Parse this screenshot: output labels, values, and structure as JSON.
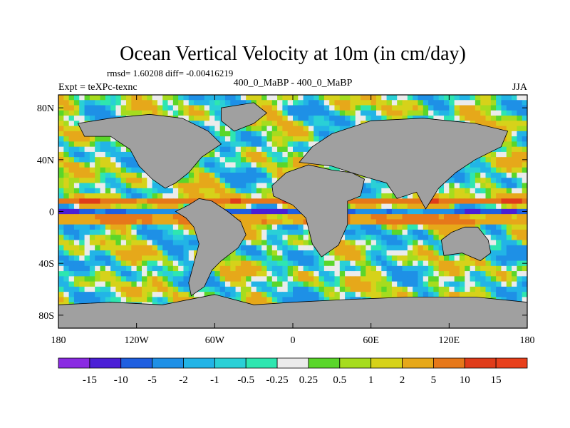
{
  "chart_data": {
    "type": "heatmap",
    "title": "Ocean Vertical Velocity at 10m (in cm/day)",
    "stats_text": "rmsd= 1.60208 diff= -0.00416219",
    "left_label": "Expt = teXPc-texnc",
    "center_label": "400_0_MaBP - 400_0_MaBP",
    "right_label": "JJA",
    "x_range": [
      -180,
      180
    ],
    "y_range": [
      -90,
      90
    ],
    "x_ticks": [
      {
        "value": -180,
        "label": "180"
      },
      {
        "value": -120,
        "label": "120W"
      },
      {
        "value": -60,
        "label": "60W"
      },
      {
        "value": 0,
        "label": "0"
      },
      {
        "value": 60,
        "label": "60E"
      },
      {
        "value": 120,
        "label": "120E"
      },
      {
        "value": 180,
        "label": "180"
      }
    ],
    "y_ticks": [
      {
        "value": 80,
        "label": "80N"
      },
      {
        "value": 40,
        "label": "40N"
      },
      {
        "value": 0,
        "label": "0"
      },
      {
        "value": -40,
        "label": "40S"
      },
      {
        "value": -80,
        "label": "80S"
      }
    ],
    "colorbar": {
      "levels": [
        "-15",
        "-10",
        "-5",
        "-2",
        "-1",
        "-0.5",
        "-0.25",
        "0.25",
        "0.5",
        "1",
        "2",
        "5",
        "10",
        "15"
      ],
      "colors": [
        "#8a2be2",
        "#4b1fd6",
        "#1f5fe0",
        "#1e90e6",
        "#22b4e6",
        "#2ad0d6",
        "#2ee6b0",
        "#ebebeb",
        "#5ad62a",
        "#a6dc1e",
        "#d6d21a",
        "#e6a81a",
        "#e6781a",
        "#e03c1a",
        "#e8401c"
      ]
    },
    "land_color": "#a0a0a0",
    "land_regions": [
      {
        "name": "South America",
        "outline": [
          [
            -90,
            0
          ],
          [
            -80,
            5
          ],
          [
            -72,
            10
          ],
          [
            -62,
            8
          ],
          [
            -50,
            0
          ],
          [
            -40,
            -8
          ],
          [
            -36,
            -18
          ],
          [
            -42,
            -28
          ],
          [
            -55,
            -38
          ],
          [
            -62,
            -45
          ],
          [
            -68,
            -58
          ],
          [
            -78,
            -65
          ],
          [
            -80,
            -55
          ],
          [
            -76,
            -40
          ],
          [
            -72,
            -25
          ],
          [
            -76,
            -12
          ],
          [
            -82,
            -5
          ]
        ]
      },
      {
        "name": "Africa-Arabia",
        "outline": [
          [
            -16,
            20
          ],
          [
            -5,
            30
          ],
          [
            12,
            36
          ],
          [
            30,
            32
          ],
          [
            45,
            30
          ],
          [
            55,
            25
          ],
          [
            52,
            12
          ],
          [
            42,
            8
          ],
          [
            42,
            -10
          ],
          [
            35,
            -26
          ],
          [
            22,
            -35
          ],
          [
            15,
            -25
          ],
          [
            10,
            -5
          ],
          [
            0,
            5
          ],
          [
            -15,
            12
          ]
        ]
      },
      {
        "name": "Asia",
        "outline": [
          [
            5,
            38
          ],
          [
            15,
            50
          ],
          [
            30,
            60
          ],
          [
            60,
            70
          ],
          [
            100,
            72
          ],
          [
            140,
            68
          ],
          [
            165,
            62
          ],
          [
            160,
            50
          ],
          [
            140,
            40
          ],
          [
            125,
            30
          ],
          [
            112,
            18
          ],
          [
            102,
            2
          ],
          [
            95,
            15
          ],
          [
            80,
            10
          ],
          [
            72,
            22
          ],
          [
            58,
            26
          ],
          [
            45,
            30
          ],
          [
            30,
            35
          ]
        ]
      },
      {
        "name": "North America",
        "outline": [
          [
            -165,
            68
          ],
          [
            -140,
            72
          ],
          [
            -110,
            75
          ],
          [
            -85,
            72
          ],
          [
            -65,
            62
          ],
          [
            -55,
            52
          ],
          [
            -70,
            42
          ],
          [
            -80,
            30
          ],
          [
            -90,
            22
          ],
          [
            -98,
            18
          ],
          [
            -108,
            25
          ],
          [
            -118,
            35
          ],
          [
            -125,
            48
          ],
          [
            -140,
            58
          ],
          [
            -160,
            58
          ]
        ]
      },
      {
        "name": "Greenland",
        "outline": [
          [
            -55,
            80
          ],
          [
            -30,
            84
          ],
          [
            -20,
            76
          ],
          [
            -30,
            68
          ],
          [
            -45,
            62
          ],
          [
            -55,
            70
          ]
        ]
      },
      {
        "name": "Australia",
        "outline": [
          [
            114,
            -22
          ],
          [
            122,
            -16
          ],
          [
            132,
            -12
          ],
          [
            142,
            -12
          ],
          [
            150,
            -22
          ],
          [
            152,
            -32
          ],
          [
            144,
            -38
          ],
          [
            130,
            -32
          ],
          [
            116,
            -34
          ]
        ]
      },
      {
        "name": "Antarctica",
        "outline": [
          [
            -180,
            -72
          ],
          [
            -140,
            -70
          ],
          [
            -100,
            -72
          ],
          [
            -60,
            -64
          ],
          [
            -30,
            -72
          ],
          [
            0,
            -70
          ],
          [
            40,
            -68
          ],
          [
            90,
            -66
          ],
          [
            140,
            -66
          ],
          [
            180,
            -70
          ],
          [
            180,
            -90
          ],
          [
            -180,
            -90
          ]
        ]
      }
    ]
  }
}
